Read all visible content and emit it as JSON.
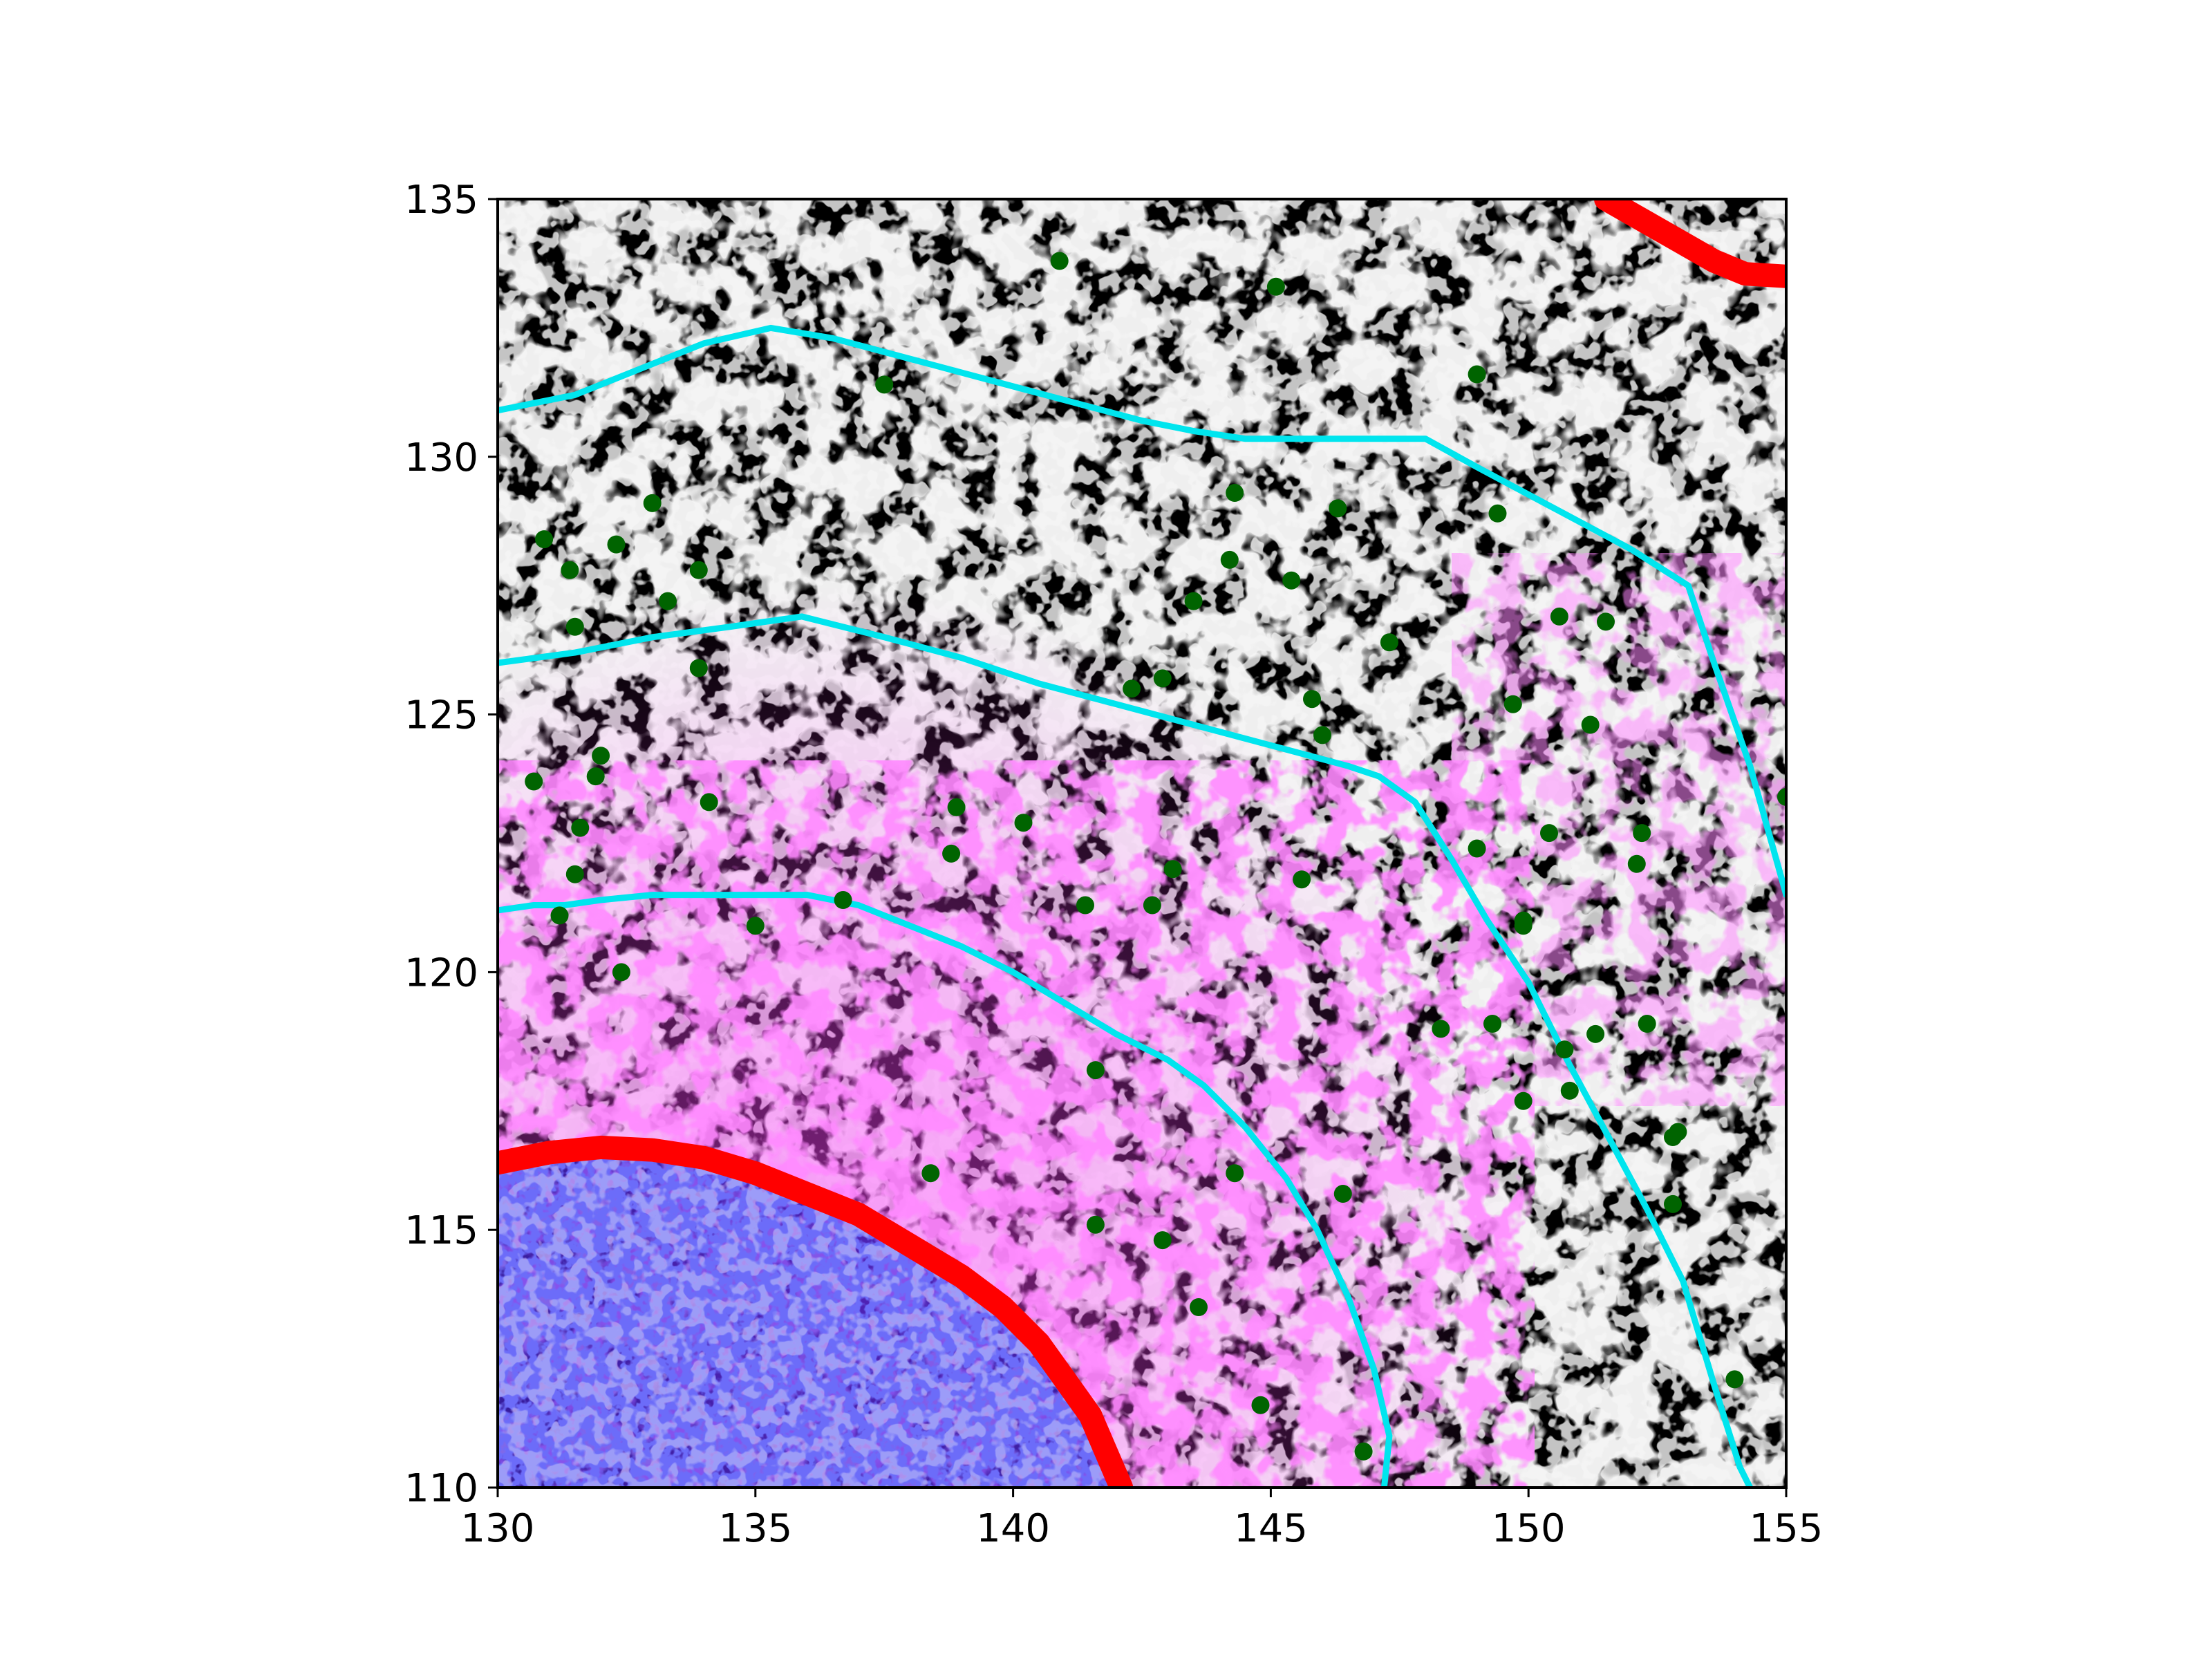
{
  "chart_data": {
    "type": "scatter",
    "title": "",
    "xlabel": "",
    "ylabel": "",
    "xlim": [
      130,
      155
    ],
    "ylim": [
      110,
      135
    ],
    "xticks": [
      130,
      135,
      140,
      145,
      150,
      155
    ],
    "yticks": [
      110,
      115,
      120,
      125,
      130,
      135
    ],
    "grid": false,
    "legend": "none",
    "background": "fluorescence microscopy image: grey network, magenta and blue signal channels",
    "colors": {
      "points": "#006400",
      "contours": "#00e5ee",
      "boundary": "#ff0000",
      "network": "#d8d8d8",
      "magenta_channel": "#ff33ff",
      "blue_channel": "#2222dd"
    },
    "series": [
      {
        "kind": "points",
        "points": [
          [
            140.9,
            133.8
          ],
          [
            145.1,
            133.3
          ],
          [
            137.5,
            131.4
          ],
          [
            149.0,
            131.6
          ],
          [
            133.0,
            129.1
          ],
          [
            130.9,
            128.4
          ],
          [
            132.3,
            128.3
          ],
          [
            131.4,
            127.8
          ],
          [
            133.9,
            127.8
          ],
          [
            133.3,
            127.2
          ],
          [
            131.5,
            126.7
          ],
          [
            133.9,
            125.9
          ],
          [
            144.3,
            129.3
          ],
          [
            146.3,
            129.0
          ],
          [
            149.4,
            128.9
          ],
          [
            144.2,
            128.0
          ],
          [
            145.4,
            127.6
          ],
          [
            143.5,
            127.2
          ],
          [
            147.3,
            126.4
          ],
          [
            150.6,
            126.9
          ],
          [
            151.5,
            126.8
          ],
          [
            142.3,
            125.5
          ],
          [
            142.9,
            125.7
          ],
          [
            145.8,
            125.3
          ],
          [
            146.0,
            124.6
          ],
          [
            149.7,
            125.2
          ],
          [
            151.2,
            124.8
          ],
          [
            130.7,
            123.7
          ],
          [
            132.0,
            124.2
          ],
          [
            131.9,
            123.8
          ],
          [
            134.1,
            123.3
          ],
          [
            131.6,
            122.8
          ],
          [
            131.5,
            121.9
          ],
          [
            138.9,
            123.2
          ],
          [
            140.2,
            122.9
          ],
          [
            138.8,
            122.3
          ],
          [
            143.1,
            122.0
          ],
          [
            142.7,
            121.3
          ],
          [
            141.4,
            121.3
          ],
          [
            145.6,
            121.8
          ],
          [
            136.7,
            121.4
          ],
          [
            149.0,
            122.4
          ],
          [
            150.4,
            122.7
          ],
          [
            152.2,
            122.7
          ],
          [
            152.1,
            122.1
          ],
          [
            155.0,
            123.4
          ],
          [
            131.2,
            121.1
          ],
          [
            135.0,
            120.9
          ],
          [
            149.9,
            121.0
          ],
          [
            149.9,
            120.9
          ],
          [
            132.4,
            120.0
          ],
          [
            148.3,
            118.9
          ],
          [
            149.3,
            119.0
          ],
          [
            151.3,
            118.8
          ],
          [
            152.3,
            119.0
          ],
          [
            150.7,
            118.5
          ],
          [
            141.6,
            118.1
          ],
          [
            150.8,
            117.7
          ],
          [
            149.9,
            117.5
          ],
          [
            152.8,
            116.8
          ],
          [
            152.9,
            116.9
          ],
          [
            138.4,
            116.1
          ],
          [
            144.3,
            116.1
          ],
          [
            146.4,
            115.7
          ],
          [
            152.8,
            115.5
          ],
          [
            141.6,
            115.1
          ],
          [
            142.9,
            114.8
          ],
          [
            143.6,
            113.5
          ],
          [
            144.8,
            111.6
          ],
          [
            146.8,
            110.7
          ],
          [
            154.0,
            112.1
          ]
        ]
      },
      {
        "kind": "contour",
        "points": [
          [
            130.0,
            130.9
          ],
          [
            131.5,
            131.2
          ],
          [
            133.0,
            131.8
          ],
          [
            134.0,
            132.2
          ],
          [
            135.3,
            132.5
          ],
          [
            136.5,
            132.3
          ],
          [
            138.0,
            131.9
          ],
          [
            139.5,
            131.5
          ],
          [
            141.0,
            131.1
          ],
          [
            142.5,
            130.7
          ],
          [
            143.5,
            130.5
          ],
          [
            144.5,
            130.35
          ],
          [
            146.0,
            130.35
          ],
          [
            147.3,
            130.35
          ],
          [
            148.0,
            130.35
          ],
          [
            149.0,
            129.8
          ],
          [
            150.5,
            129.0
          ],
          [
            152.0,
            128.2
          ],
          [
            153.1,
            127.5
          ],
          [
            153.6,
            126.0
          ],
          [
            154.3,
            124.0
          ],
          [
            155.0,
            121.5
          ]
        ]
      },
      {
        "kind": "contour",
        "points": [
          [
            130.0,
            126.0
          ],
          [
            131.5,
            126.2
          ],
          [
            133.0,
            126.5
          ],
          [
            134.5,
            126.7
          ],
          [
            135.9,
            126.9
          ],
          [
            137.5,
            126.5
          ],
          [
            139.0,
            126.1
          ],
          [
            140.5,
            125.6
          ],
          [
            142.0,
            125.2
          ],
          [
            143.5,
            124.8
          ],
          [
            145.0,
            124.4
          ],
          [
            146.5,
            124.0
          ],
          [
            147.1,
            123.8
          ],
          [
            147.8,
            123.3
          ],
          [
            148.5,
            122.2
          ],
          [
            149.2,
            121.0
          ],
          [
            150.0,
            119.8
          ],
          [
            150.8,
            118.2
          ],
          [
            151.5,
            116.9
          ],
          [
            152.3,
            115.4
          ],
          [
            153.0,
            114.0
          ],
          [
            153.6,
            112.0
          ],
          [
            154.1,
            110.4
          ],
          [
            154.3,
            110.0
          ]
        ]
      },
      {
        "kind": "contour",
        "points": [
          [
            130.0,
            121.2
          ],
          [
            130.7,
            121.3
          ],
          [
            131.3,
            121.3
          ],
          [
            132.0,
            121.4
          ],
          [
            133.0,
            121.5
          ],
          [
            134.0,
            121.5
          ],
          [
            135.0,
            121.5
          ],
          [
            136.0,
            121.5
          ],
          [
            137.0,
            121.3
          ],
          [
            138.0,
            120.9
          ],
          [
            139.0,
            120.5
          ],
          [
            140.0,
            120.0
          ],
          [
            141.0,
            119.4
          ],
          [
            142.0,
            118.8
          ],
          [
            143.0,
            118.3
          ],
          [
            143.7,
            117.8
          ],
          [
            144.5,
            117.0
          ],
          [
            145.3,
            116.0
          ],
          [
            145.9,
            115.0
          ],
          [
            146.5,
            113.7
          ],
          [
            147.0,
            112.3
          ],
          [
            147.3,
            111.0
          ],
          [
            147.2,
            110.0
          ]
        ]
      },
      {
        "kind": "boundary",
        "points": [
          [
            130.0,
            116.3
          ],
          [
            131.0,
            116.5
          ],
          [
            132.0,
            116.6
          ],
          [
            133.0,
            116.55
          ],
          [
            134.0,
            116.4
          ],
          [
            135.0,
            116.1
          ],
          [
            136.0,
            115.7
          ],
          [
            137.0,
            115.3
          ],
          [
            138.0,
            114.7
          ],
          [
            139.0,
            114.1
          ],
          [
            139.8,
            113.5
          ],
          [
            140.5,
            112.8
          ],
          [
            141.0,
            112.1
          ],
          [
            141.5,
            111.4
          ],
          [
            141.8,
            110.7
          ],
          [
            142.1,
            110.0
          ]
        ]
      },
      {
        "kind": "boundary",
        "points": [
          [
            151.5,
            135.0
          ],
          [
            152.2,
            134.6
          ],
          [
            152.9,
            134.2
          ],
          [
            153.6,
            133.8
          ],
          [
            154.2,
            133.55
          ],
          [
            155.0,
            133.5
          ]
        ]
      }
    ]
  }
}
